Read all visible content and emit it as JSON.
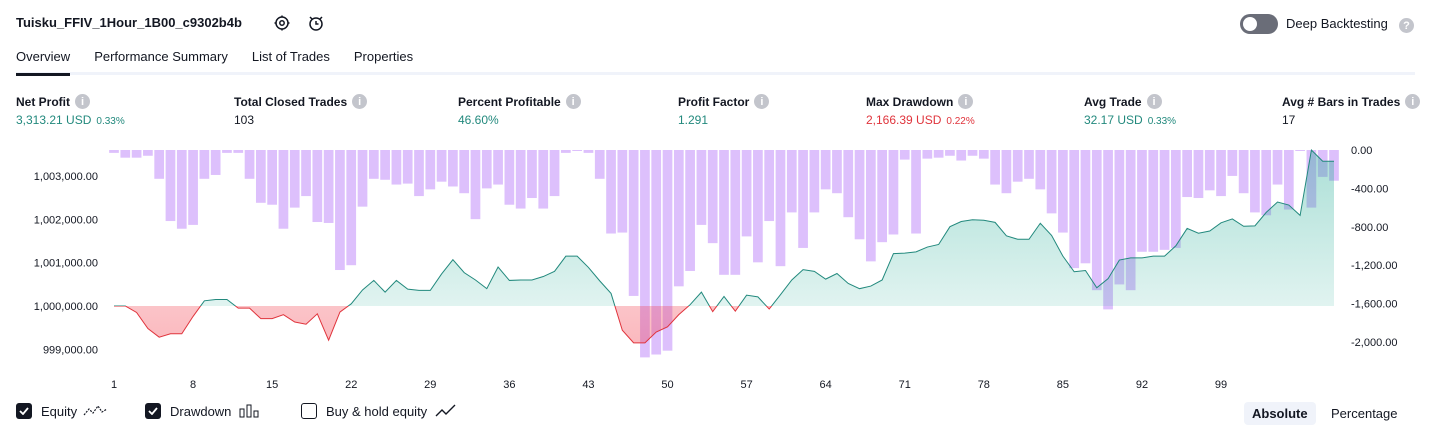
{
  "header": {
    "title": "Tuisku_FFIV_1Hour_1B00_c9302b4b",
    "settings_icon": "gear-icon",
    "alert_icon": "add-alert-icon",
    "deep_backtesting_label": "Deep Backtesting",
    "deep_backtesting_enabled": false
  },
  "tabs": [
    {
      "label": "Overview",
      "active": true
    },
    {
      "label": "Performance Summary",
      "active": false
    },
    {
      "label": "List of Trades",
      "active": false
    },
    {
      "label": "Properties",
      "active": false
    }
  ],
  "stats": [
    {
      "label": "Net Profit",
      "value": "3,313.21 USD",
      "pct": "0.33%",
      "color": "#22897d"
    },
    {
      "label": "Total Closed Trades",
      "value": "103",
      "pct": "",
      "color": "#131722"
    },
    {
      "label": "Percent Profitable",
      "value": "46.60%",
      "pct": "",
      "color": "#22897d"
    },
    {
      "label": "Profit Factor",
      "value": "1.291",
      "pct": "",
      "color": "#22897d"
    },
    {
      "label": "Max Drawdown",
      "value": "2,166.39 USD",
      "pct": "0.22%",
      "color": "#e0343c"
    },
    {
      "label": "Avg Trade",
      "value": "32.17 USD",
      "pct": "0.33%",
      "color": "#22897d"
    },
    {
      "label": "Avg # Bars in Trades",
      "value": "17",
      "pct": "",
      "color": "#131722"
    }
  ],
  "chart_data": {
    "type": "line",
    "x_ticks": [
      "1",
      "8",
      "15",
      "22",
      "29",
      "36",
      "43",
      "50",
      "57",
      "64",
      "71",
      "78",
      "85",
      "92",
      "99"
    ],
    "y_left_ticks": [
      "1,003,000.00",
      "1,002,000.00",
      "1,001,000.00",
      "1,000,000.00",
      "999,000.00"
    ],
    "y_right_ticks": [
      "0.00",
      "-400.00",
      "-800.00",
      "-1,200.00",
      "-1,600.00",
      "-2,000.00"
    ],
    "y_left_range": [
      998800,
      1003600
    ],
    "y_right_range": [
      -2166.39,
      0
    ],
    "baseline": 1000000,
    "series": [
      {
        "name": "Equity",
        "color": "#22897d",
        "negative_color": "#e0343c",
        "values": [
          1000000,
          1000000,
          999850,
          999480,
          999280,
          999360,
          999360,
          999760,
          1000120,
          1000150,
          1000150,
          999950,
          999950,
          999710,
          999710,
          999800,
          999630,
          999580,
          999820,
          999210,
          999860,
          1000050,
          1000370,
          1000590,
          1000320,
          1000590,
          1000390,
          1000360,
          1000360,
          1000740,
          1001070,
          1000770,
          1000600,
          1000400,
          1000900,
          1000590,
          1000600,
          1000600,
          1000680,
          1000800,
          1001150,
          1001150,
          1000890,
          1000580,
          1000290,
          999440,
          999150,
          999150,
          999400,
          999520,
          999800,
          1000030,
          1000320,
          999870,
          1000220,
          999880,
          1000250,
          1000210,
          999930,
          1000260,
          1000600,
          1000840,
          1000800,
          1000620,
          1000750,
          1000520,
          1000400,
          1000460,
          1000600,
          1001210,
          1001220,
          1001250,
          1001360,
          1001420,
          1001830,
          1001950,
          1001990,
          1001980,
          1001930,
          1001620,
          1001540,
          1001540,
          1001910,
          1001630,
          1001150,
          1000790,
          1000820,
          1000420,
          1000630,
          1001060,
          1001110,
          1001110,
          1001150,
          1001150,
          1001390,
          1001790,
          1001680,
          1001730,
          1001920,
          1002010,
          1001840,
          1001850,
          1002160,
          1002400,
          1002330,
          1002090,
          1003600,
          1003340,
          1003340
        ]
      },
      {
        "name": "Drawdown",
        "color": "#d7b5fb",
        "values": [
          -30,
          -80,
          -80,
          -60,
          -300,
          -740,
          -820,
          -780,
          -300,
          -260,
          -30,
          -30,
          -300,
          -550,
          -570,
          -820,
          -600,
          -480,
          -750,
          -760,
          -1250,
          -1200,
          -590,
          -300,
          -310,
          -360,
          -350,
          -480,
          -410,
          -330,
          -380,
          -450,
          -720,
          -400,
          -360,
          -570,
          -610,
          -500,
          -610,
          -480,
          -30,
          -10,
          -30,
          -300,
          -870,
          -860,
          -1520,
          -2160,
          -2130,
          -2090,
          -1420,
          -1260,
          -780,
          -970,
          -1300,
          -1300,
          -900,
          -1170,
          -740,
          -1210,
          -650,
          -1020,
          -650,
          -410,
          -450,
          -700,
          -930,
          -1160,
          -960,
          -880,
          -100,
          -870,
          -90,
          -80,
          -60,
          -110,
          -60,
          -90,
          -360,
          -450,
          -330,
          -300,
          -410,
          -660,
          -860,
          -1230,
          -1180,
          -1460,
          -1660,
          -1400,
          -1460,
          -1060,
          -1060,
          -1040,
          -1020,
          -490,
          -500,
          -420,
          -480,
          -270,
          -450,
          -650,
          -680,
          -360,
          -620,
          -10,
          -600,
          -280,
          -320
        ]
      }
    ],
    "legend_position": "bottom-left"
  },
  "legend": [
    {
      "label": "Equity",
      "checked": true,
      "icon": "equity-line-icon"
    },
    {
      "label": "Drawdown",
      "checked": true,
      "icon": "drawdown-bars-icon"
    },
    {
      "label": "Buy & hold equity",
      "checked": false,
      "icon": "buy-hold-line-icon"
    }
  ],
  "view_modes": [
    {
      "label": "Absolute",
      "active": true
    },
    {
      "label": "Percentage",
      "active": false
    }
  ]
}
